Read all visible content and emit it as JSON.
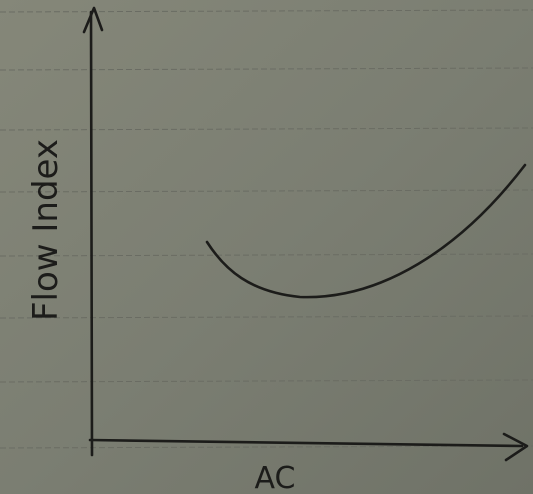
{
  "axes": {
    "y_label": "Flow Index",
    "x_label": "AC"
  }
}
